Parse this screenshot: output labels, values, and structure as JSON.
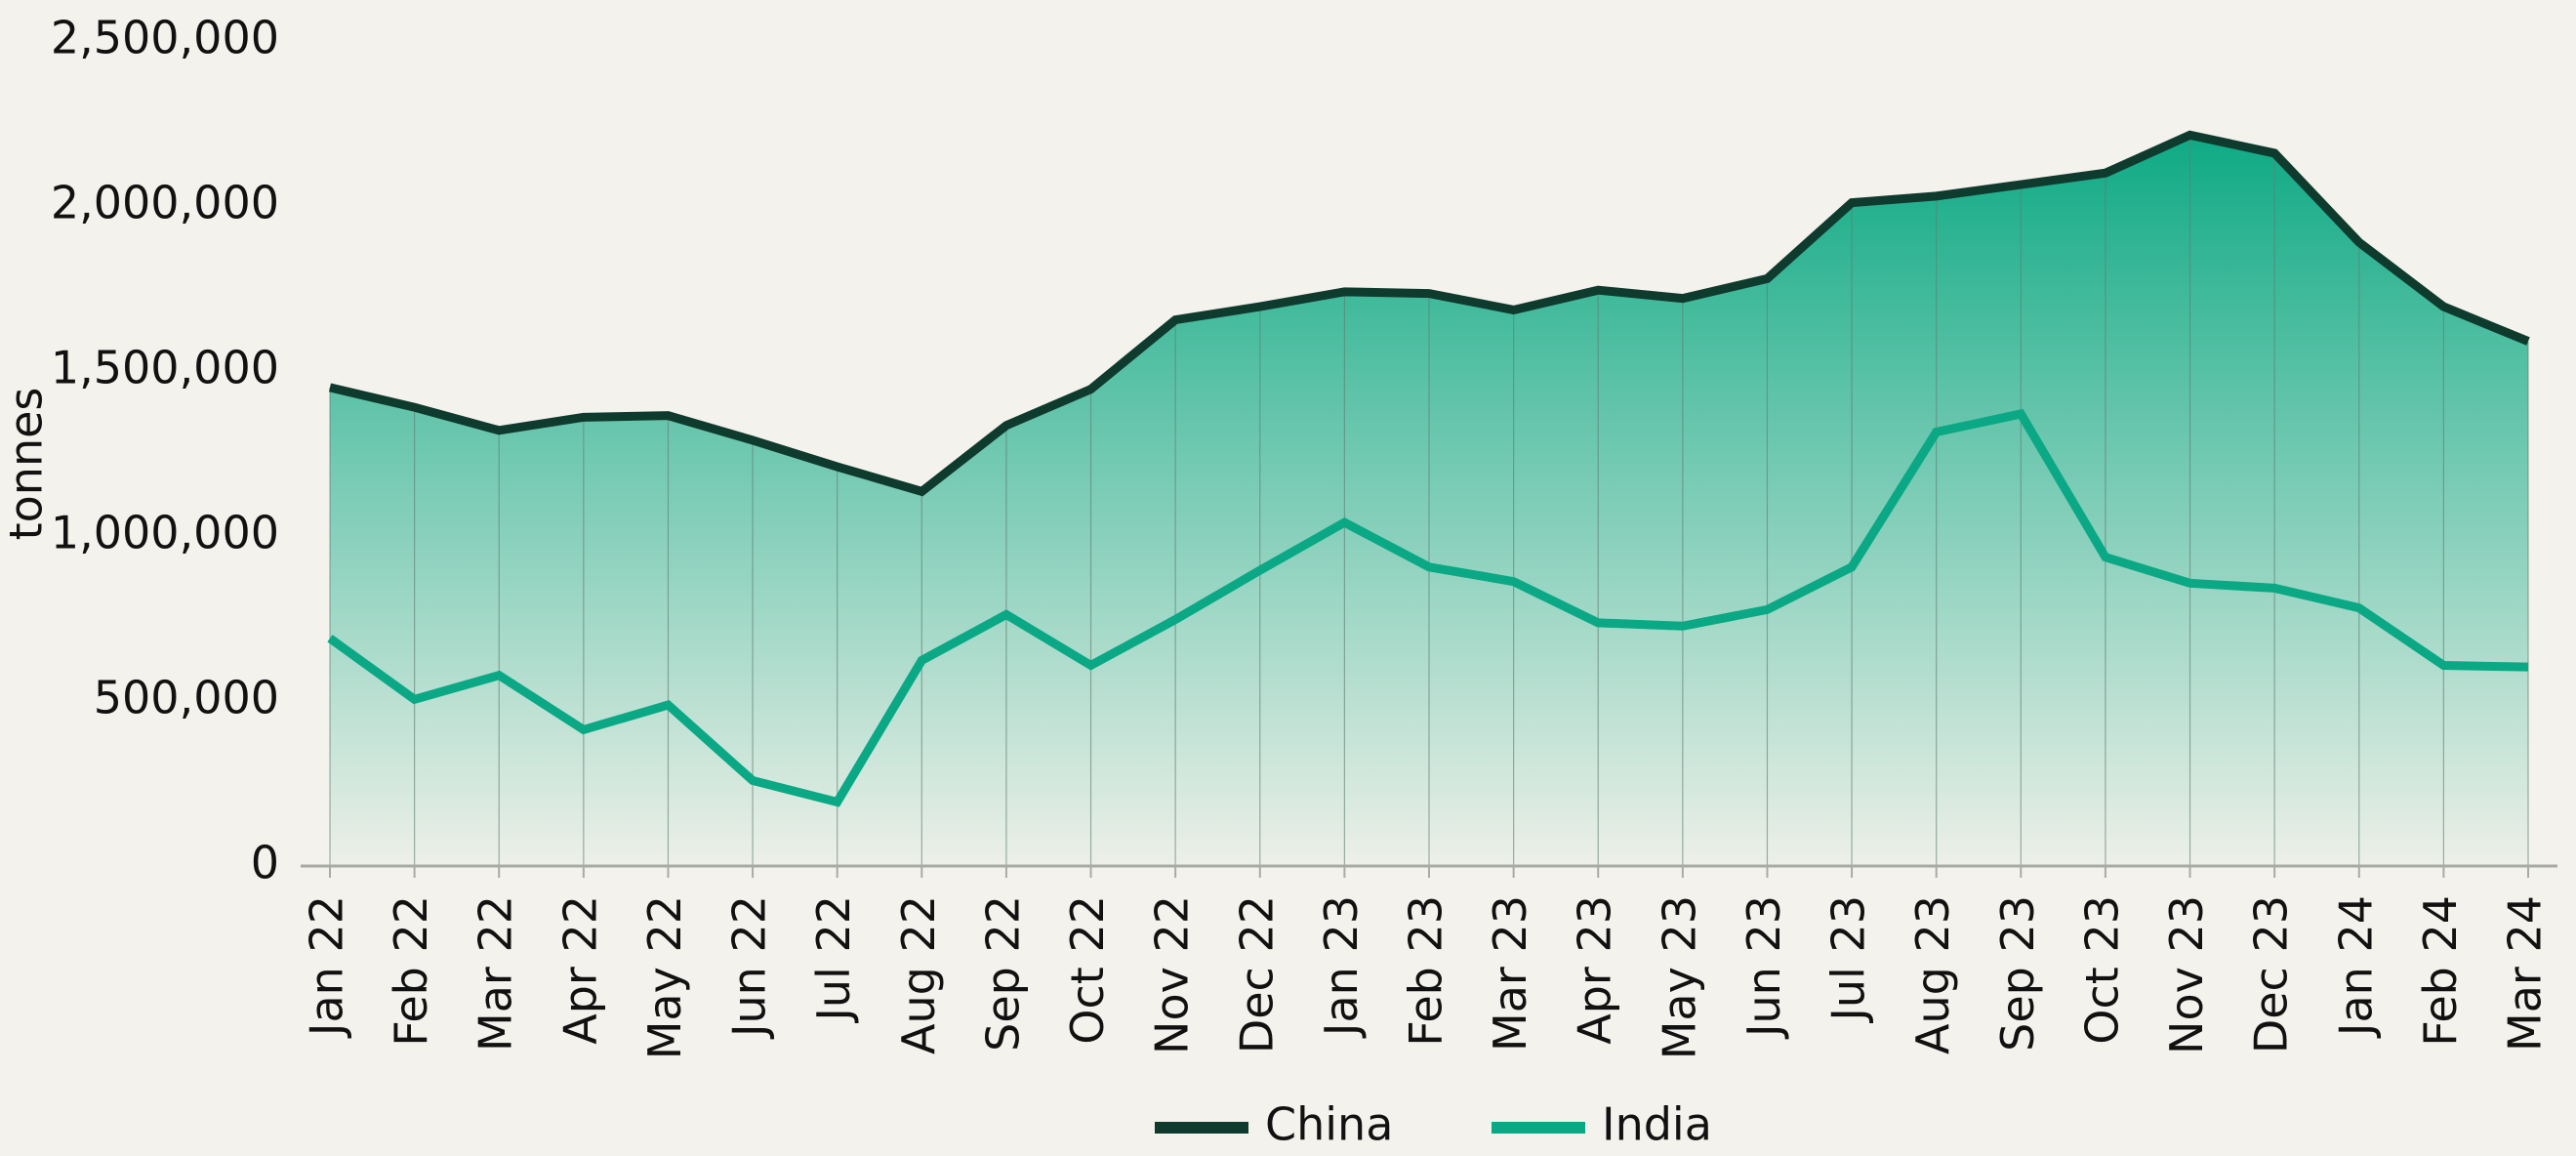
{
  "chart_data": {
    "type": "area_line",
    "categories": [
      "Jan 22",
      "Feb 22",
      "Mar 22",
      "Apr 22",
      "May 22",
      "Jun 22",
      "Jul 22",
      "Aug 22",
      "Sep 22",
      "Oct 22",
      "Nov 22",
      "Dec 22",
      "Jan 23",
      "Feb 23",
      "Mar 23",
      "Apr 23",
      "May 23",
      "Jun 23",
      "Jul 23",
      "Aug 23",
      "Sep 23",
      "Oct 23",
      "Nov 23",
      "Dec 23",
      "Jan 24",
      "Feb 24",
      "Mar 24"
    ],
    "series": [
      {
        "name": "China",
        "color": "#0e3b2e",
        "fill": "#0faa85",
        "values": [
          1450000,
          1390000,
          1320000,
          1360000,
          1365000,
          1290000,
          1210000,
          1135000,
          1335000,
          1445000,
          1655000,
          1695000,
          1740000,
          1735000,
          1685000,
          1745000,
          1720000,
          1780000,
          2010000,
          2030000,
          2065000,
          2100000,
          2215000,
          2160000,
          1890000,
          1695000,
          1590000
        ]
      },
      {
        "name": "India",
        "color": "#0aa884",
        "values": [
          690000,
          505000,
          578000,
          413000,
          488000,
          259000,
          194000,
          623000,
          762000,
          608000,
          747000,
          896000,
          1041000,
          906000,
          862000,
          737000,
          727000,
          777000,
          906000,
          1315000,
          1370000,
          936000,
          857000,
          842000,
          782000,
          608000,
          603000
        ]
      }
    ],
    "y_label": "tonnes",
    "ylim": [
      0,
      2500000
    ],
    "yticks": [
      0,
      {
        "value": 500000,
        "label": "500,000"
      },
      {
        "value": 1000000,
        "label": "1,000,000"
      },
      {
        "value": 1500000,
        "label": "1,500,000"
      },
      {
        "value": 2000000,
        "label": "2,000,000"
      },
      {
        "value": 2500000,
        "label": "2,500,000"
      }
    ],
    "legend": "bottom"
  }
}
